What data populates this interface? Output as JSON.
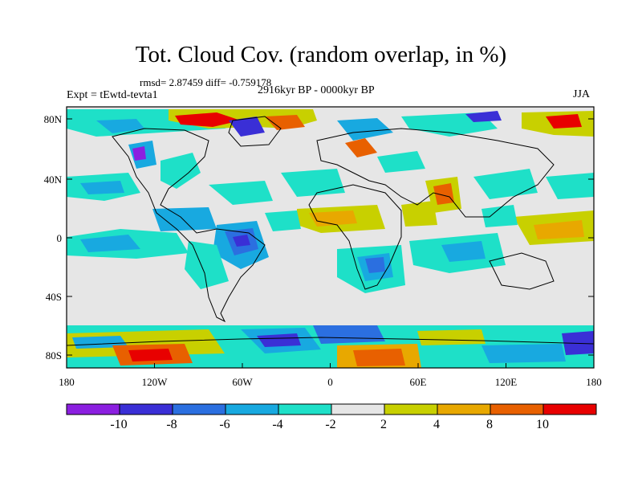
{
  "title": "Tot. Cloud Cov. (random overlap, in %)",
  "stats": "rmsd= 2.87459 diff= -0.759178",
  "experiment": "Expt = tEwtd-tevta1",
  "period": "2916kyr BP - 0000kyr BP",
  "season": "JJA",
  "lat_ticks": [
    "80N",
    "40N",
    "0",
    "40S",
    "80S"
  ],
  "lon_ticks": [
    "180",
    "120W",
    "60W",
    "0",
    "60E",
    "120E",
    "180"
  ],
  "colorbar": {
    "labels": [
      "-10",
      "-8",
      "-6",
      "-4",
      "-2",
      "2",
      "4",
      "8",
      "10"
    ],
    "colors": [
      "#8b1fe0",
      "#3a2fd6",
      "#2b6fe0",
      "#18a9e0",
      "#1ee0c8",
      "#e6e6e6",
      "#c8d000",
      "#e8a800",
      "#e86000",
      "#e80000"
    ]
  }
}
